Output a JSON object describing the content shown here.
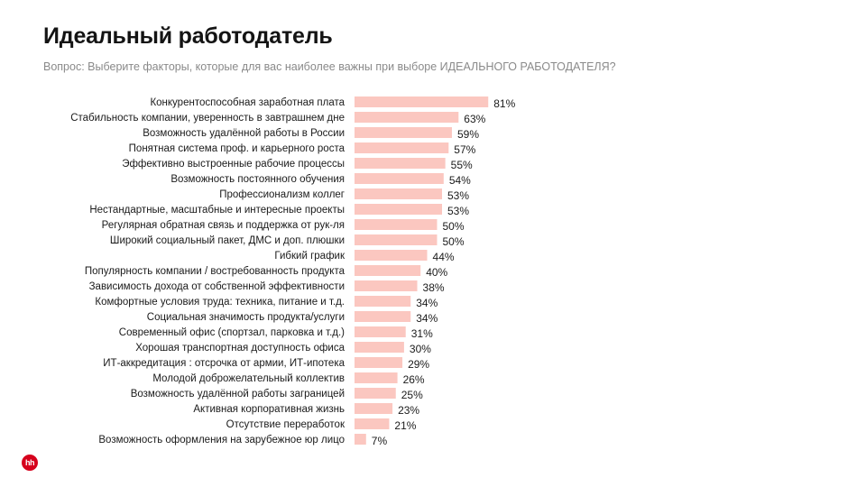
{
  "header": {
    "title": "Идеальный работодатель",
    "subtitle": "Вопрос: Выберите факторы, которые для вас наиболее важны при выборе ИДЕАЛЬНОГО  РАБОТОДАТЕЛЯ?"
  },
  "logo": {
    "text": "hh",
    "color": "#d6001c"
  },
  "chart_data": {
    "type": "bar",
    "orientation": "horizontal",
    "title": "",
    "xlabel": "",
    "ylabel": "",
    "xlim": [
      0,
      100
    ],
    "grid": false,
    "bar_color": "#fbc7c0",
    "value_suffix": "%",
    "categories": [
      "Конкурентоспособная заработная плата",
      "Стабильность компании, уверенность в завтрашнем дне",
      "Возможность удалённой работы в России",
      "Понятная система проф. и карьерного роста",
      "Эффективно выстроенные рабочие процессы",
      "Возможность постоянного обучения",
      "Профессионализм коллег",
      "Нестандартные, масштабные и интересные проекты",
      "Регулярная обратная связь и поддержка от рук-ля",
      "Широкий социальный пакет, ДМС и доп. плюшки",
      "Гибкий график",
      "Популярность компании / востребованность продукта",
      "Зависимость дохода от собственной эффективности",
      "Комфортные условия труда:  техника, питание и т.д.",
      "Социальная значимость продукта/услуги",
      "Современный офис (спортзал, парковка и т.д.)",
      "Хорошая транспортная доступность офиса",
      "ИТ-аккредитация : отсрочка от армии, ИТ-ипотека",
      "Молодой доброжелательный коллектив",
      "Возможность удалённой работы заграницей",
      "Активная корпоративная жизнь",
      "Отсутствие  переработок",
      "Возможность оформления на зарубежное юр лицо"
    ],
    "values": [
      81,
      63,
      59,
      57,
      55,
      54,
      53,
      53,
      50,
      50,
      44,
      40,
      38,
      34,
      34,
      31,
      30,
      29,
      26,
      25,
      23,
      21,
      7
    ]
  }
}
